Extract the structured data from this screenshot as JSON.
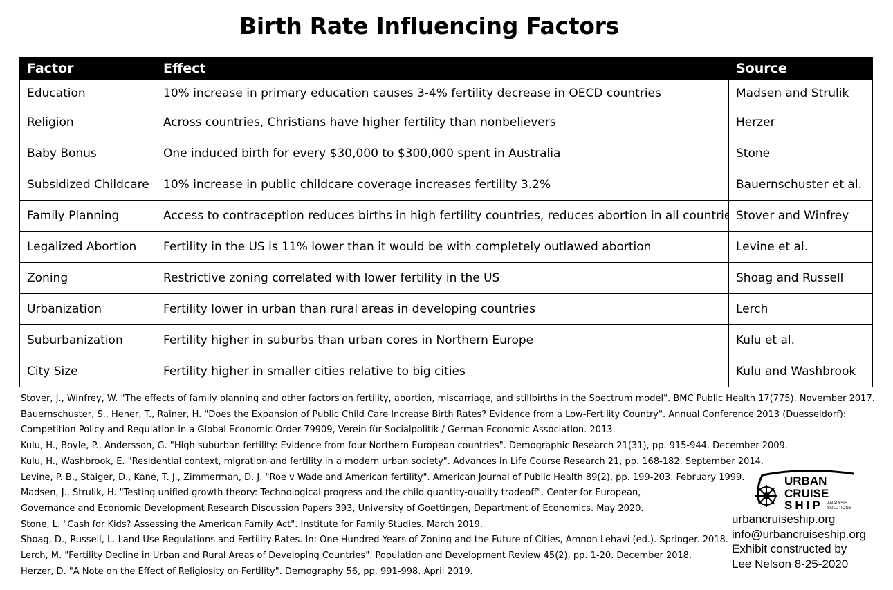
{
  "title": "Birth Rate Influencing Factors",
  "table": {
    "headers": [
      "Factor",
      "Effect",
      "Source"
    ],
    "rows": [
      [
        "Education",
        "10% increase in primary education causes 3-4% fertility decrease in OECD countries",
        "Madsen and Strulik"
      ],
      [
        "Religion",
        "Across countries, Christians have higher fertility than nonbelievers",
        "Herzer"
      ],
      [
        "Baby Bonus",
        "One induced birth for every $30,000 to $300,000 spent in Australia",
        "Stone"
      ],
      [
        "Subsidized Childcare",
        "10% increase in public childcare coverage increases fertility 3.2%",
        "Bauernschuster et al."
      ],
      [
        "Family Planning",
        "Access to contraception reduces births in high fertility countries, reduces abortion in all countries.",
        "Stover and Winfrey"
      ],
      [
        "Legalized Abortion",
        "Fertility in the US is 11% lower than it would be with completely outlawed abortion",
        "Levine et al."
      ],
      [
        "Zoning",
        "Restrictive zoning correlated with lower fertility in the US",
        "Shoag and Russell"
      ],
      [
        "Urbanization",
        "Fertility lower in urban than rural areas in developing countries",
        "Lerch"
      ],
      [
        "Suburbanization",
        "Fertility higher in suburbs than urban cores in Northern Europe",
        "Kulu et al."
      ],
      [
        "City Size",
        "Fertility higher in smaller cities relative to big cities",
        "Kulu and Washbrook"
      ]
    ]
  },
  "references": [
    "Stover, J., Winfrey, W. \"The effects of family planning and other factors on fertility, abortion, miscarriage, and stillbirths in the Spectrum model\". BMC Public Health 17(775). November 2017.",
    "Bauernschuster, S., Hener, T., Rainer, H. \"Does the Expansion of Public Child Care Increase Birth Rates? Evidence from a Low-Fertility Country\". Annual Conference 2013 (Duesseldorf):",
    "Competition Policy and Regulation in a Global Economic Order 79909, Verein für Socialpolitik / German Economic Association. 2013.",
    "Kulu, H., Boyle, P., Andersson, G. \"High suburban fertility: Evidence from four Northern European countries\". Demographic Research 21(31), pp. 915-944. December 2009.",
    "Kulu, H., Washbrook, E. \"Residential context, migration and fertility in a modern urban society\". Advances in Life Course Research 21, pp. 168-182. September 2014.",
    "Levine, P. B., Staiger, D., Kane, T. J., Zimmerman, D. J. \"Roe v Wade and American fertility\". American Journal of Public Health 89(2), pp. 199-203. February 1999.",
    "Madsen, J., Strulik, H. \"Testing unified growth theory: Technological progress and the child quantity-quality tradeoff\". Center for European,",
    "Governance and Economic Development Research Discussion Papers 393, University of Goettingen, Department of Economics. May 2020.",
    "Stone, L. \"Cash for Kids? Assessing the American Family Act\". Institute for Family Studies. March 2019.",
    "Shoag, D., Russell, L. Land Use Regulations and Fertility Rates. In: One Hundred Years of Zoning and the Future of Cities, Amnon Lehavi (ed.). Springer. 2018.",
    "Lerch, M. \"Fertility Decline in Urban and Rural Areas of Developing Countries\". Population and Development Review 45(2), pp. 1-20. December 2018.",
    "Herzer, D. \"A Note on the Effect of Religiosity on Fertility\". Demography 56, pp. 991-998. April 2019."
  ],
  "logo": {
    "line1": "URBAN",
    "line2": "CRUISE",
    "line3": "SHIP",
    "tag1": "ANALYSIS",
    "tag2": "SOLUTIONS",
    "icon": "ship-wheel-icon"
  },
  "contact": {
    "website": "urbancruiseship.org",
    "email": "info@urbancruiseship.org",
    "credit_line1": "Exhibit constructed by",
    "credit_line2": "Lee Nelson 8-25-2020"
  }
}
